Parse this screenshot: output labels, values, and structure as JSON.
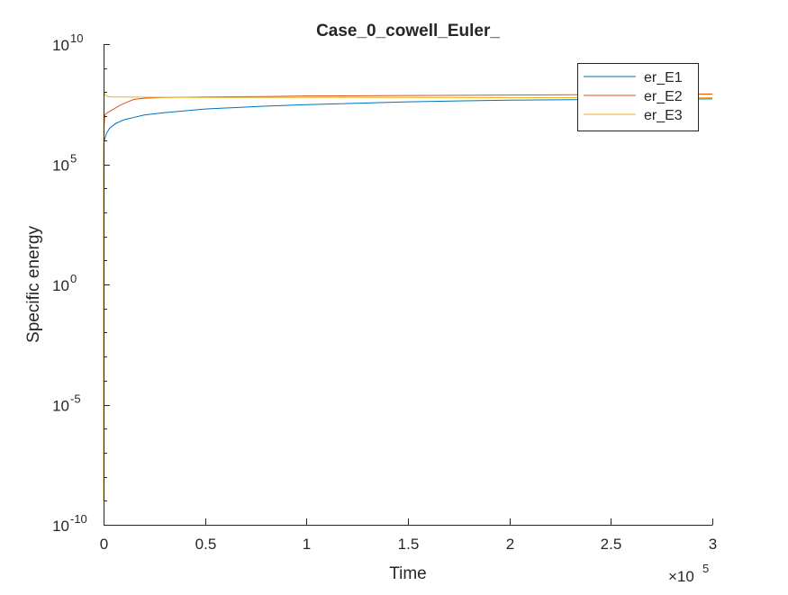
{
  "chart_data": {
    "type": "line",
    "title": "Case_0_cowell_Euler_",
    "xlabel": "Time",
    "ylabel": "Specific energy",
    "x_multiplier": {
      "base": "×10",
      "exponent": "5"
    },
    "xlim": [
      0,
      3
    ],
    "ylim_log10": [
      -10,
      10
    ],
    "yscale": "log",
    "xticks": [
      "0",
      "0.5",
      "1",
      "1.5",
      "2",
      "2.5",
      "3"
    ],
    "yticks": [
      {
        "value": -10,
        "base": "10",
        "exp": "-10"
      },
      {
        "value": -5,
        "base": "10",
        "exp": "-5"
      },
      {
        "value": 0,
        "base": "10",
        "exp": "0"
      },
      {
        "value": 5,
        "base": "10",
        "exp": "5"
      },
      {
        "value": 10,
        "base": "10",
        "exp": "10"
      }
    ],
    "grid": false,
    "legend_position": "top-right",
    "series": [
      {
        "name": "er_E1",
        "color": "#0072BD",
        "x": [
          0,
          0.0002,
          0.0005,
          0.001,
          0.002,
          0.004,
          0.008,
          0.015,
          0.03,
          0.06,
          0.1,
          0.15,
          0.2,
          0.3,
          0.5,
          0.8,
          1.0,
          1.5,
          2.0,
          2.5,
          3.0
        ],
        "y_log10": [
          -8.5,
          0.5,
          4.5,
          5.6,
          5.9,
          6.0,
          6.1,
          6.3,
          6.5,
          6.7,
          6.85,
          6.95,
          7.05,
          7.15,
          7.3,
          7.42,
          7.48,
          7.6,
          7.67,
          7.7,
          7.72
        ]
      },
      {
        "name": "er_E2",
        "color": "#D95319",
        "x": [
          0,
          0.0002,
          0.0005,
          0.001,
          0.002,
          0.005,
          0.01,
          0.02,
          0.04,
          0.08,
          0.12,
          0.15,
          0.2,
          0.3,
          0.5,
          0.8,
          1.0,
          1.5,
          2.0,
          2.5,
          3.0
        ],
        "y_log10": [
          -8.0,
          -3.0,
          2.0,
          5.5,
          6.5,
          7.0,
          7.1,
          7.15,
          7.25,
          7.45,
          7.6,
          7.7,
          7.75,
          7.78,
          7.8,
          7.82,
          7.84,
          7.86,
          7.88,
          7.9,
          7.92
        ]
      },
      {
        "name": "er_E3",
        "color": "#EDB120",
        "x": [
          0,
          0.0002,
          0.0005,
          0.001,
          0.002,
          0.003,
          0.005,
          0.01,
          0.02,
          0.05,
          0.1,
          0.2,
          0.5,
          1.0,
          1.5,
          2.0,
          2.5,
          3.0
        ],
        "y_log10": [
          -9.0,
          -4.0,
          3.0,
          6.5,
          7.6,
          7.95,
          7.92,
          7.88,
          7.82,
          7.8,
          7.8,
          7.79,
          7.78,
          7.78,
          7.78,
          7.77,
          7.77,
          7.77
        ]
      }
    ]
  }
}
